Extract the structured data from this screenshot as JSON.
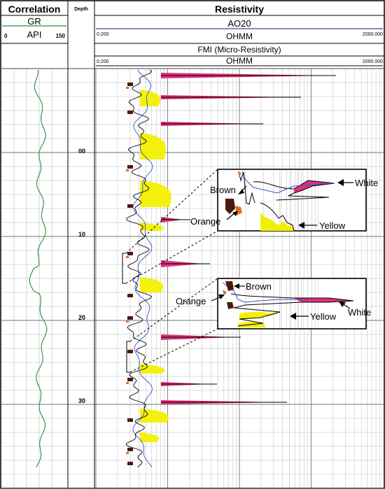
{
  "header": {
    "correlation": {
      "title": "Correlation",
      "curve": "GR",
      "unit": "API",
      "min": "0",
      "max": "150"
    },
    "depth": {
      "title": "Depth"
    },
    "resistivity": {
      "title": "Resistivity",
      "curve1": {
        "name": "AO20",
        "unit": "OHMM",
        "min": "0.200",
        "max": "2000.000"
      },
      "curve2": {
        "name": "FMI (Micro-Resistivity)",
        "unit": "OHMM",
        "min": "0.200",
        "max": "2000.000"
      }
    }
  },
  "depth_labels": [
    "00",
    "10",
    "20",
    "30"
  ],
  "insets": [
    {
      "labels": {
        "brown": "Brown",
        "orange": "Orange",
        "white": "White",
        "yellow": "Yellow"
      }
    },
    {
      "labels": {
        "brown": "Brown",
        "orange": "Orange",
        "white": "White",
        "yellow": "Yellow"
      }
    }
  ],
  "colors": {
    "gr_curve": "#2e8b3a",
    "ao20_header": "#3344aa",
    "trace": "#000000",
    "blue_trace": "#3355cc",
    "yellow_fill": "#f2f000",
    "pink_fill": "#e0307a",
    "brown_fill": "#4a1a10",
    "orange_fill": "#e07020",
    "grid": "#555555"
  }
}
